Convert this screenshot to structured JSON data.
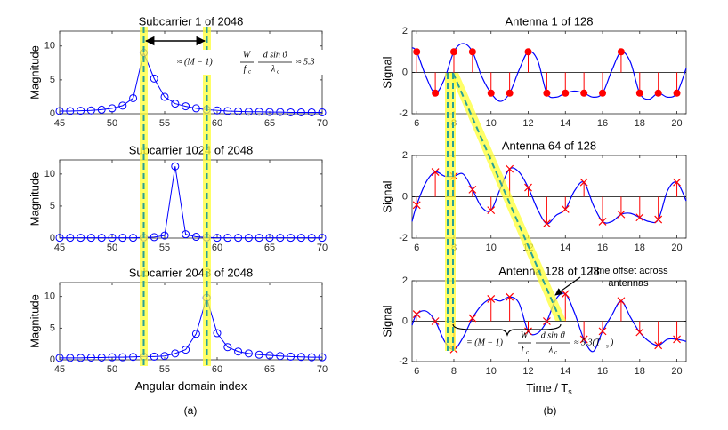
{
  "chart_data": [
    {
      "type": "line",
      "title": "Subcarrier 1 of 2048",
      "ylabel": "Magnitude",
      "marker": "o",
      "color": "#0000ff",
      "x": [
        45,
        46,
        47,
        48,
        49,
        50,
        51,
        52,
        53,
        54,
        55,
        56,
        57,
        58,
        59,
        60,
        61,
        62,
        63,
        64,
        65,
        66,
        67,
        68,
        69,
        70
      ],
      "values": [
        0.4,
        0.4,
        0.45,
        0.5,
        0.6,
        0.8,
        1.2,
        2.3,
        9,
        5.2,
        2.5,
        1.5,
        1.1,
        0.8,
        0.6,
        0.5,
        0.4,
        0.35,
        0.3,
        0.3,
        0.25,
        0.25,
        0.2,
        0.2,
        0.2,
        0.2
      ],
      "xlim": [
        45,
        70
      ],
      "xticks": [
        45,
        50,
        55,
        60,
        65,
        70
      ],
      "ylim": [
        0,
        12.2
      ],
      "yticks": [
        0,
        5,
        10
      ]
    },
    {
      "type": "line",
      "title": "Subcarrier 1024 of 2048",
      "ylabel": "Magnitude",
      "marker": "o",
      "color": "#0000ff",
      "x": [
        45,
        46,
        47,
        48,
        49,
        50,
        51,
        52,
        53,
        54,
        55,
        56,
        57,
        58,
        59,
        60,
        61,
        62,
        63,
        64,
        65,
        66,
        67,
        68,
        69,
        70
      ],
      "values": [
        0.05,
        0.05,
        0.05,
        0.05,
        0.05,
        0.05,
        0.05,
        0.05,
        0.1,
        0.15,
        0.4,
        11.2,
        0.6,
        0.2,
        0.1,
        0.05,
        0.05,
        0.05,
        0.05,
        0.05,
        0.05,
        0.05,
        0.05,
        0.05,
        0.05,
        0.05
      ],
      "xlim": [
        45,
        70
      ],
      "xticks": [
        45,
        50,
        55,
        60,
        65,
        70
      ],
      "ylim": [
        0,
        12.2
      ],
      "yticks": [
        0,
        5,
        10
      ]
    },
    {
      "type": "line",
      "title": "Subcarrier 2048 of 2048",
      "ylabel": "Magnitude",
      "xlabel": "Angular domain index",
      "marker": "o",
      "color": "#0000ff",
      "x": [
        45,
        46,
        47,
        48,
        49,
        50,
        51,
        52,
        53,
        54,
        55,
        56,
        57,
        58,
        59,
        60,
        61,
        62,
        63,
        64,
        65,
        66,
        67,
        68,
        69,
        70
      ],
      "values": [
        0.3,
        0.3,
        0.3,
        0.35,
        0.35,
        0.4,
        0.4,
        0.45,
        0.5,
        0.5,
        0.6,
        1.0,
        1.6,
        4.1,
        9.8,
        4.2,
        2.0,
        1.3,
        1.0,
        0.8,
        0.7,
        0.6,
        0.5,
        0.45,
        0.4,
        0.4
      ],
      "xlim": [
        45,
        70
      ],
      "xticks": [
        45,
        50,
        55,
        60,
        65,
        70
      ],
      "ylim": [
        0,
        12.2
      ],
      "yticks": [
        0,
        5,
        10
      ]
    },
    {
      "type": "stem",
      "title": "Antenna 1 of 128",
      "ylabel": "Signal",
      "marker": "o",
      "color": "#ff0000",
      "curve_color": "#0000ff",
      "stem_x": [
        6,
        7,
        8,
        9,
        10,
        11,
        12,
        13,
        14,
        15,
        16,
        17,
        18,
        19,
        20
      ],
      "stem_values": [
        1,
        -1,
        1,
        1,
        -1,
        -1,
        1,
        -1,
        -1,
        -1,
        -1,
        1,
        -1,
        -1,
        -1
      ],
      "curve_x": [
        5.75,
        6,
        6.5,
        7,
        7.5,
        8,
        8.5,
        9,
        9.5,
        10,
        10.5,
        11,
        11.5,
        12,
        12.5,
        13,
        13.5,
        14,
        14.5,
        15,
        15.5,
        16,
        16.5,
        17,
        17.5,
        18,
        18.5,
        19,
        19.5,
        20,
        20.5
      ],
      "curve_values": [
        1.2,
        1,
        -0.2,
        -1,
        -0.3,
        1,
        1.4,
        1,
        -0.2,
        -1,
        -1.4,
        -1,
        0.1,
        1,
        0.6,
        -1,
        -1.2,
        -1,
        -0.9,
        -1,
        -1.2,
        -1,
        0.1,
        1,
        0.5,
        -1,
        -1.3,
        -1,
        -1.2,
        -1,
        0.2
      ],
      "xlim": [
        5.75,
        20.5
      ],
      "xticks": [
        6,
        8,
        10,
        12,
        14,
        16,
        18,
        20
      ],
      "ylim": [
        -2,
        2
      ],
      "yticks": [
        -2,
        0,
        2
      ]
    },
    {
      "type": "stem",
      "title": "Antenna 64 of 128",
      "ylabel": "Signal",
      "marker": "x",
      "color": "#ff0000",
      "curve_color": "#0000ff",
      "stem_x": [
        6,
        7,
        8,
        9,
        10,
        11,
        12,
        13,
        14,
        15,
        16,
        17,
        18,
        19,
        20
      ],
      "stem_values": [
        -0.4,
        1.2,
        1.0,
        0.35,
        -0.65,
        1.35,
        0.45,
        -1.3,
        -0.6,
        0.7,
        -1.2,
        -0.85,
        -1.0,
        -1.1,
        0.7
      ],
      "curve_x": [
        5.75,
        6,
        6.5,
        7,
        7.5,
        8,
        8.5,
        9,
        9.5,
        10,
        10.5,
        11,
        11.5,
        12,
        12.5,
        13,
        13.5,
        14,
        14.5,
        15,
        15.5,
        16,
        16.5,
        17,
        17.5,
        18,
        18.5,
        19,
        19.5,
        20,
        20.5
      ],
      "curve_values": [
        -1.2,
        -0.4,
        0.7,
        1.2,
        1.0,
        1.0,
        1.1,
        0.35,
        -0.5,
        -0.65,
        0.4,
        1.35,
        1.2,
        0.45,
        -0.6,
        -1.3,
        -0.9,
        -0.6,
        0.3,
        0.7,
        -0.4,
        -1.2,
        -1.2,
        -0.85,
        -0.8,
        -1.0,
        -1.2,
        -1.1,
        0.3,
        0.7,
        -0.2
      ],
      "xlim": [
        5.75,
        20.5
      ],
      "xticks": [
        6,
        8,
        10,
        12,
        14,
        16,
        18,
        20
      ],
      "ylim": [
        -2,
        2
      ],
      "yticks": [
        -2,
        0,
        2
      ]
    },
    {
      "type": "stem",
      "title": "Antenna 128 of 128",
      "ylabel": "Signal",
      "xlabel": "Time / T",
      "xlabel_sub": "s",
      "marker": "x",
      "color": "#ff0000",
      "curve_color": "#0000ff",
      "stem_x": [
        6,
        7,
        8,
        9,
        10,
        11,
        12,
        13,
        14,
        15,
        16,
        17,
        18,
        19,
        20
      ],
      "stem_values": [
        0.35,
        0,
        -1.4,
        0.15,
        1.1,
        1.2,
        -0.5,
        0,
        1.35,
        -0.9,
        -0.5,
        1.0,
        -0.55,
        -1.2,
        -0.9
      ],
      "curve_x": [
        5.75,
        6,
        6.5,
        7,
        7.5,
        8,
        8.5,
        9,
        9.5,
        10,
        10.5,
        11,
        11.5,
        12,
        12.5,
        13,
        13.5,
        14,
        14.5,
        15,
        15.5,
        16,
        16.5,
        17,
        17.5,
        18,
        18.5,
        19,
        19.5,
        20,
        20.5
      ],
      "curve_values": [
        -0.2,
        0.35,
        0.5,
        0,
        -1.0,
        -1.4,
        -0.8,
        0.15,
        0.8,
        1.1,
        1.0,
        1.2,
        0.9,
        -0.5,
        -0.6,
        0,
        1.1,
        1.35,
        0.4,
        -0.9,
        -1.5,
        -0.5,
        0.3,
        1.0,
        0.2,
        -0.55,
        -1.0,
        -1.2,
        -0.9,
        -0.9,
        -1.0
      ],
      "xlim": [
        5.75,
        20.5
      ],
      "xticks": [
        6,
        8,
        10,
        12,
        14,
        16,
        18,
        20
      ],
      "ylim": [
        -2,
        2
      ],
      "yticks": [
        -2,
        0,
        2
      ]
    }
  ],
  "annotations": {
    "left": {
      "prefix": "≈ (M − 1)",
      "num1": "W",
      "den1": "f",
      "den1_sub": "c",
      "num2": "d sin ϑ",
      "den2": "λ",
      "den2_sub": "c",
      "suffix": "≈ 5.3"
    },
    "right": {
      "prefix": "= (M − 1)",
      "num1": "W",
      "den1": "f",
      "den1_sub": "c",
      "num2": "d sin ϑ",
      "den2": "λ",
      "den2_sub": "c",
      "suffix": "≈ 5.3(T",
      "suffix_sub": "s",
      "suffix_end": ")"
    },
    "offset_line1": "Time offset across",
    "offset_line2": "antennas",
    "caption_a": "(a)",
    "caption_b": "(b)"
  }
}
